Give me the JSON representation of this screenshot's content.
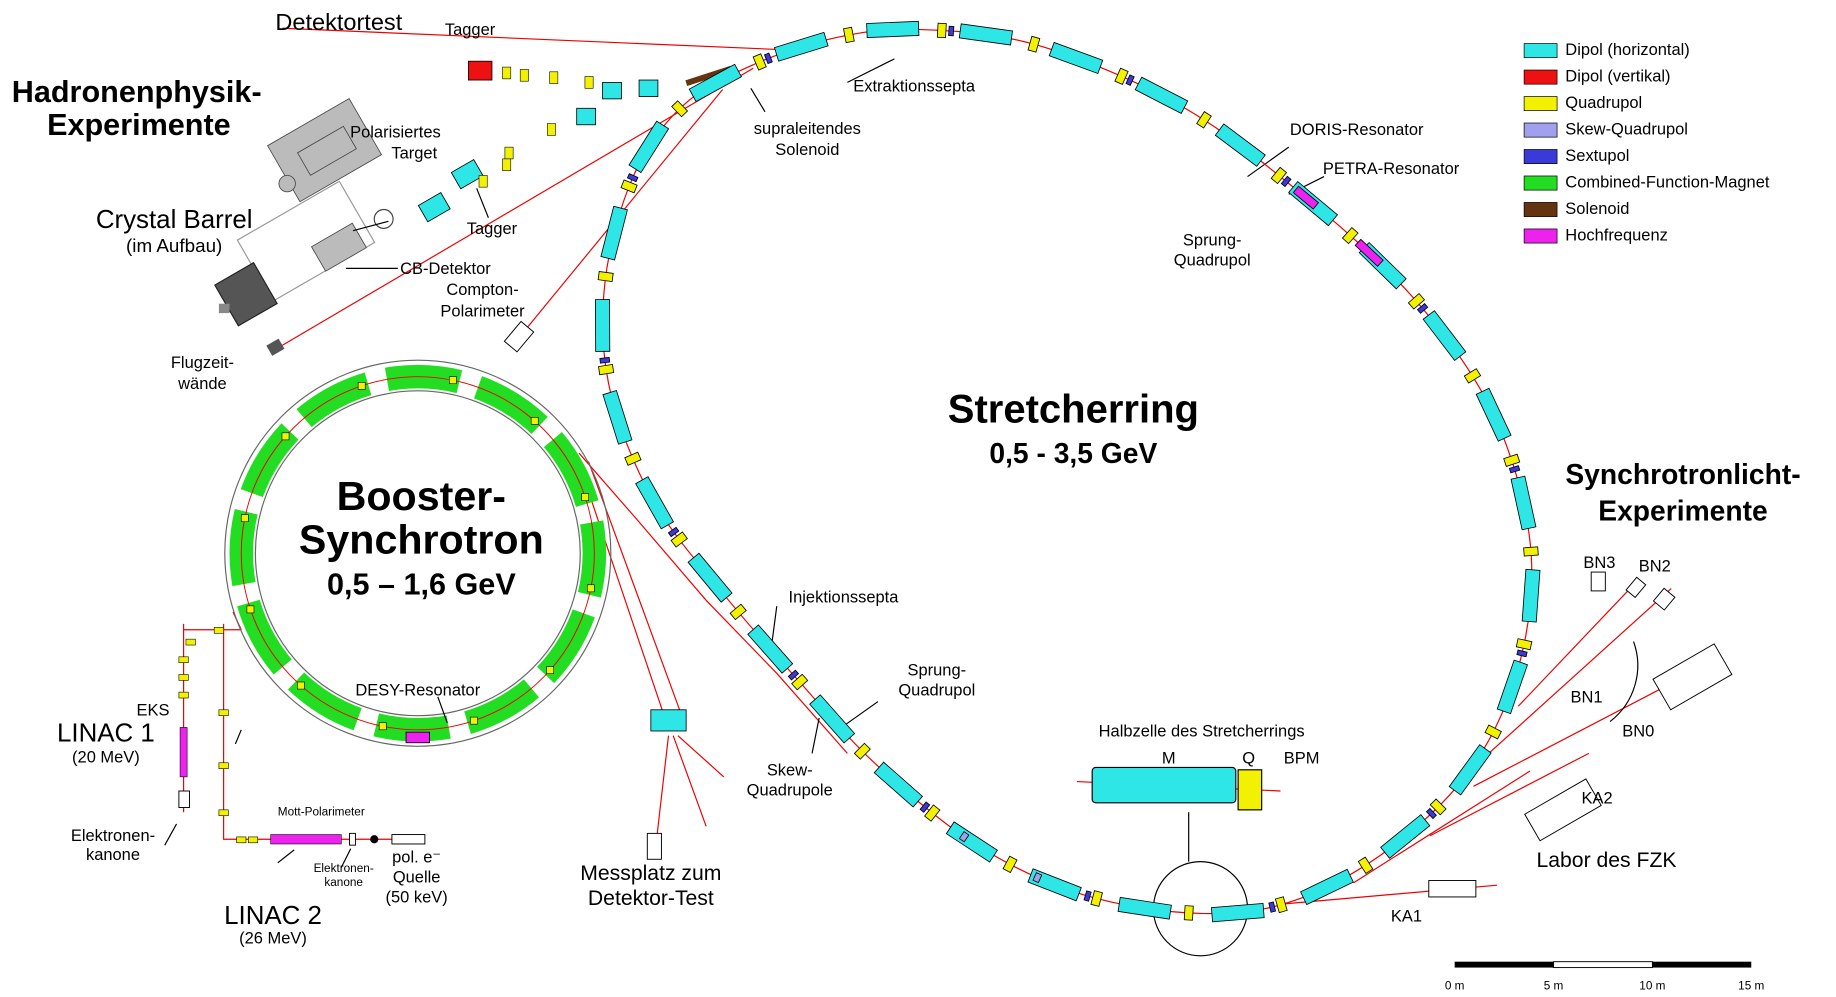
{
  "legend": [
    {
      "name": "Dipol (horizontal)",
      "color": "#2ee6e6"
    },
    {
      "name": "Dipol (vertikal)",
      "color": "#ee1111"
    },
    {
      "name": "Quadrupol",
      "color": "#f2f200"
    },
    {
      "name": "Skew-Quadrupol",
      "color": "#a0a0ee"
    },
    {
      "name": "Sextupol",
      "color": "#3a3ad8"
    },
    {
      "name": "Combined-Function-Magnet",
      "color": "#22dd22"
    },
    {
      "name": "Solenoid",
      "color": "#663311"
    },
    {
      "name": "Hochfrequenz",
      "color": "#ee22ee"
    }
  ],
  "labels": {
    "detektortest": "Detektortest",
    "tagger_top": "Tagger",
    "hadronen": [
      "Hadronenphysik-",
      "Experimente"
    ],
    "polarisiertes_target": [
      "Polarisiertes",
      "Target"
    ],
    "crystal_barrel": "Crystal Barrel",
    "im_aufbau": "(im Aufbau)",
    "tagger": "Tagger",
    "cb_detektor": "CB-Detektor",
    "flugzeitwaende": [
      "Flugzeit-",
      "wände"
    ],
    "compton": [
      "Compton-",
      "Polarimeter"
    ],
    "solenoid": [
      "supraleitendes",
      "Solenoid"
    ],
    "extraktionssepta": "Extraktionssepta",
    "doris": "DORIS-Resonator",
    "petra": "PETRA-Resonator",
    "sprung_quadrupol_top": [
      "Sprung-",
      "Quadrupol"
    ],
    "stretcherring": "Stretcherring",
    "stretcherring_energy": "0,5 - 3,5 GeV",
    "synchrotronlicht": [
      "Synchrotronlicht-",
      "Experimente"
    ],
    "bn3": "BN3",
    "bn2": "BN2",
    "bn1": "BN1",
    "bn0": "BN0",
    "ka2": "KA2",
    "labor": "Labor des FZK",
    "ka1": "KA1",
    "halbzelle": "Halbzelle des Stretcherrings",
    "m": "M",
    "q": "Q",
    "bpm": "BPM",
    "sprung_quadrupol": [
      "Sprung-",
      "Quadrupol"
    ],
    "skew": [
      "Skew-",
      "Quadrupole"
    ],
    "injektionssepta": "Injektionssepta",
    "messplatz": [
      "Messplatz zum",
      "Detektor-Test"
    ],
    "booster": [
      "Booster-",
      "Synchrotron"
    ],
    "booster_energy": "0,5 – 1,6 GeV",
    "desy": "DESY-Resonator",
    "eks": "EKS",
    "linac1": "LINAC 1",
    "linac1_energy": "(20 MeV)",
    "elektronenkanone1": [
      "Elektronen-",
      "kanone"
    ],
    "mott": "Mott-Polarimeter",
    "elektronenkanone2": [
      "Elektronen-",
      "kanone"
    ],
    "quelle": [
      "pol. e⁻",
      "Quelle",
      "(50 keV)"
    ],
    "linac2": "LINAC 2",
    "linac2_energy": "(26 MeV)"
  },
  "scale": [
    "0 m",
    "5 m",
    "10 m",
    "15 m"
  ]
}
